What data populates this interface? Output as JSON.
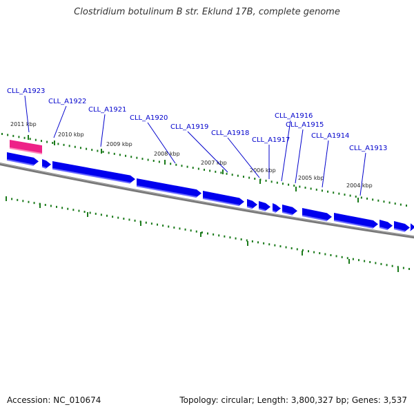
{
  "title": "Clostridium botulinum B str. Eklund 17B, complete genome",
  "footer": {
    "accession": "Accession: NC_010674",
    "summary": "Topology: circular; Length: 3,800,327 bp; Genes: 3,537"
  },
  "colors": {
    "gene": "#0000ee",
    "gene_edge": "#6a6aff",
    "highlight": "#ee2288",
    "ruler": "#1a7a1a",
    "backbone": "#777777",
    "label": "#0000cc"
  },
  "ticks": [
    {
      "label": "2011 kbp"
    },
    {
      "label": "2010 kbp"
    },
    {
      "label": "2009 kbp"
    },
    {
      "label": "2008 kbp"
    },
    {
      "label": "2007 kbp"
    },
    {
      "label": "2006 kbp"
    },
    {
      "label": "2005 kbp"
    },
    {
      "label": "2004 kbp"
    }
  ],
  "gene_labels": [
    {
      "label": "CLL_A1923"
    },
    {
      "label": "CLL_A1922"
    },
    {
      "label": "CLL_A1921"
    },
    {
      "label": "CLL_A1920"
    },
    {
      "label": "CLL_A1919"
    },
    {
      "label": "CLL_A1918"
    },
    {
      "label": "CLL_A1917"
    },
    {
      "label": "CLL_A1916"
    },
    {
      "label": "CLL_A1915"
    },
    {
      "label": "CLL_A1914"
    },
    {
      "label": "CLL_A1913"
    }
  ]
}
